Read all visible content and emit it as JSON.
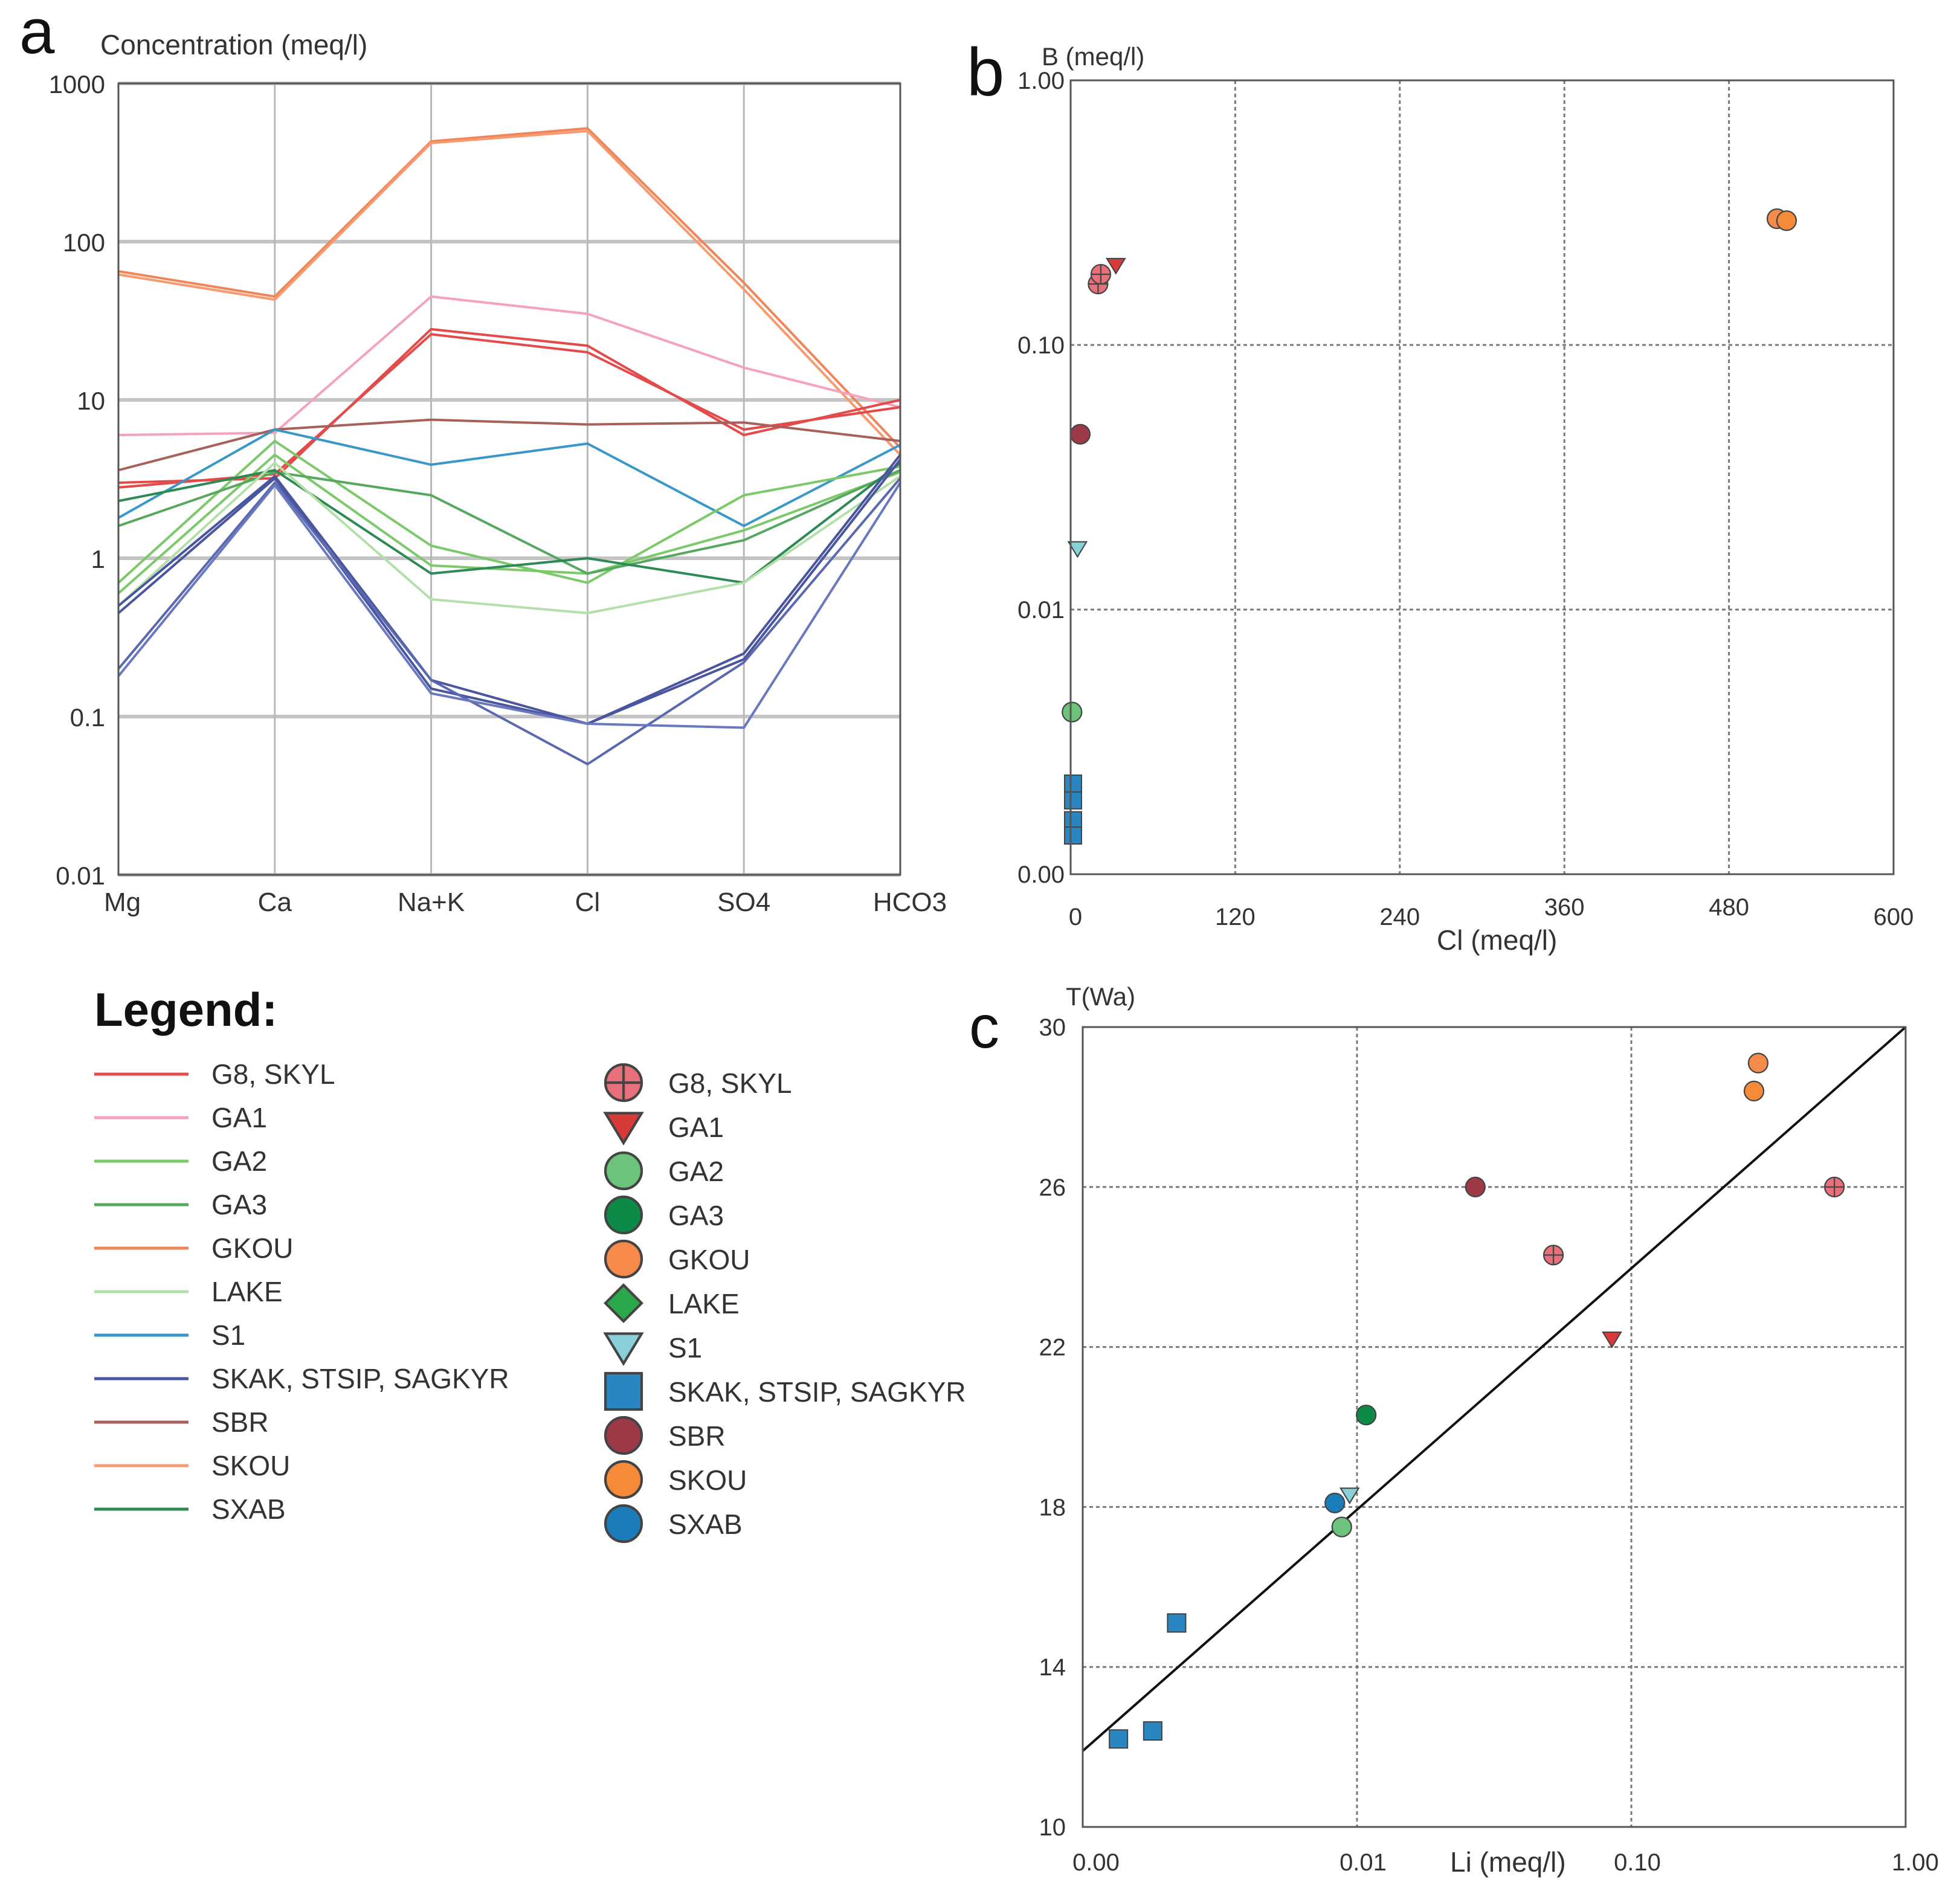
{
  "panel_letters": {
    "a": "a",
    "b": "b",
    "c": "c"
  },
  "legend": {
    "title": "Legend:",
    "line_entries": [
      {
        "label": "G8, SKYL",
        "color": "#e34a4a"
      },
      {
        "label": "GA1",
        "color": "#f4a3b8"
      },
      {
        "label": "GA2",
        "color": "#7cc96a"
      },
      {
        "label": "GA3",
        "color": "#56a85e"
      },
      {
        "label": "GKOU",
        "color": "#f0855a"
      },
      {
        "label": "LAKE",
        "color": "#b3e0a8"
      },
      {
        "label": "S1",
        "color": "#3a98c8"
      },
      {
        "label": "SKAK, STSIP, SAGKYR",
        "color": "#4a55a0"
      },
      {
        "label": "SBR",
        "color": "#a8605a"
      },
      {
        "label": "SKOU",
        "color": "#f79a70"
      },
      {
        "label": "SXAB",
        "color": "#2e8a55"
      }
    ],
    "marker_entries": [
      {
        "label": "G8, SKYL",
        "shape": "circle-cross",
        "color": "#e8707a"
      },
      {
        "label": "GA1",
        "shape": "triangle-down",
        "color": "#d83a3a"
      },
      {
        "label": "GA2",
        "shape": "circle",
        "color": "#6cc47a"
      },
      {
        "label": "GA3",
        "shape": "circle",
        "color": "#0e8a48"
      },
      {
        "label": "GKOU",
        "shape": "circle",
        "color": "#f58a4a"
      },
      {
        "label": "LAKE",
        "shape": "diamond",
        "color": "#2aa84a"
      },
      {
        "label": "S1",
        "shape": "triangle-down",
        "color": "#8ad0d8"
      },
      {
        "label": "SKAK, STSIP, SAGKYR",
        "shape": "square",
        "color": "#2a86c0"
      },
      {
        "label": "SBR",
        "shape": "circle",
        "color": "#9e3a48"
      },
      {
        "label": "SKOU",
        "shape": "circle",
        "color": "#f58a38"
      },
      {
        "label": "SXAB",
        "shape": "circle",
        "color": "#1a7cb8"
      }
    ]
  },
  "chart_data": [
    {
      "id": "a",
      "type": "line",
      "title": "Concentration (meq/l)",
      "yscale": "log",
      "ylim": [
        0.01,
        1000
      ],
      "categories": [
        "Mg",
        "Ca",
        "Na+K",
        "Cl",
        "SO4",
        "HCO3"
      ],
      "yticks": [
        "1000",
        "100",
        "10",
        "1",
        "0.1",
        "0.01"
      ],
      "ytick_values": [
        1000,
        100,
        10,
        1,
        0.1,
        0.01
      ],
      "grid": true,
      "series": [
        {
          "name": "GKOU",
          "color": "#f0855a",
          "values": [
            65,
            45,
            430,
            520,
            55,
            5
          ]
        },
        {
          "name": "SKOU",
          "color": "#f79a70",
          "values": [
            62,
            43,
            420,
            500,
            50,
            4.5
          ]
        },
        {
          "name": "GA1",
          "color": "#f4a3b8",
          "values": [
            6,
            6.2,
            45,
            35,
            16,
            9
          ]
        },
        {
          "name": "G8, SKYL",
          "color": "#e34a4a",
          "values": [
            3,
            3.2,
            28,
            22,
            6,
            10
          ]
        },
        {
          "name": "G8, SKYL",
          "color": "#e34a4a",
          "values": [
            2.8,
            3.4,
            26,
            20,
            6.5,
            9
          ]
        },
        {
          "name": "SBR",
          "color": "#a8605a",
          "values": [
            3.6,
            6.5,
            7.5,
            7,
            7.2,
            5.5
          ]
        },
        {
          "name": "S1",
          "color": "#3a98c8",
          "values": [
            1.8,
            6.5,
            3.9,
            5.3,
            1.6,
            5.2
          ]
        },
        {
          "name": "GA2",
          "color": "#7cc96a",
          "values": [
            0.7,
            5.5,
            1.2,
            0.7,
            2.5,
            3.8
          ]
        },
        {
          "name": "GA2",
          "color": "#7cc96a",
          "values": [
            0.6,
            4.5,
            0.9,
            0.8,
            1.5,
            3.5
          ]
        },
        {
          "name": "GA3",
          "color": "#56a85e",
          "values": [
            1.6,
            3.5,
            2.5,
            0.8,
            1.3,
            3.6
          ]
        },
        {
          "name": "SXAB",
          "color": "#2e8a55",
          "values": [
            2.3,
            3.6,
            0.8,
            1,
            0.7,
            4
          ]
        },
        {
          "name": "LAKE",
          "color": "#b3e0a8",
          "values": [
            0.5,
            4,
            0.55,
            0.45,
            0.7,
            3.3
          ]
        },
        {
          "name": "SKAK, STSIP, SAGKYR",
          "color": "#4a55a0",
          "values": [
            0.5,
            3.3,
            0.17,
            0.09,
            0.25,
            4.5
          ]
        },
        {
          "name": "SKAK, STSIP, SAGKYR",
          "color": "#4a55a0",
          "values": [
            0.45,
            3.2,
            0.15,
            0.09,
            0.23,
            4.2
          ]
        },
        {
          "name": "SKAK, STSIP, SAGKYR",
          "color": "#5a68b0",
          "values": [
            0.2,
            3,
            0.17,
            0.05,
            0.22,
            3.2
          ]
        },
        {
          "name": "SKAK, STSIP, SAGKYR",
          "color": "#6a78c0",
          "values": [
            0.18,
            2.9,
            0.14,
            0.09,
            0.085,
            3
          ]
        }
      ]
    },
    {
      "id": "b",
      "type": "scatter",
      "xlabel": "Cl (meq/l)",
      "ylabel": "B (meq/l)",
      "xlim": [
        0,
        600
      ],
      "xticks": [
        "0",
        "120",
        "240",
        "360",
        "480",
        "600"
      ],
      "xtick_values": [
        0,
        120,
        240,
        360,
        480,
        600
      ],
      "yticks": [
        "1.00",
        "0.10",
        "0.01",
        "0.00"
      ],
      "grid": true,
      "points": [
        {
          "group": "GKOU",
          "shape": "circle",
          "color": "#f58a4a",
          "x": 515,
          "y": 0.3
        },
        {
          "group": "SKOU",
          "shape": "circle",
          "color": "#f58a38",
          "x": 522,
          "y": 0.295
        },
        {
          "group": "G8, SKYL",
          "shape": "circle-cross",
          "color": "#e8707a",
          "x": 20,
          "y": 0.17
        },
        {
          "group": "G8, SKYL",
          "shape": "circle-cross",
          "color": "#e8707a",
          "x": 22,
          "y": 0.185
        },
        {
          "group": "GA1",
          "shape": "triangle-down",
          "color": "#d83a3a",
          "x": 33,
          "y": 0.2
        },
        {
          "group": "SBR",
          "shape": "circle",
          "color": "#9e3a48",
          "x": 7,
          "y": 0.046
        },
        {
          "group": "S1",
          "shape": "triangle-down",
          "color": "#8ad0d8",
          "x": 5,
          "y": 0.017
        },
        {
          "group": "GA2",
          "shape": "circle",
          "color": "#6cc47a",
          "x": 1,
          "y": 0.0041
        },
        {
          "group": "SKAK, STSIP, SAGKYR",
          "shape": "square",
          "color": "#2a86c0",
          "x": 0,
          "y": 0.0022
        },
        {
          "group": "SKAK, STSIP, SAGKYR",
          "shape": "square",
          "color": "#2a86c0",
          "x": 0,
          "y": 0.0019
        },
        {
          "group": "SKAK, STSIP, SAGKYR",
          "shape": "square",
          "color": "#2a86c0",
          "x": 0,
          "y": 0.0016
        },
        {
          "group": "SKAK, STSIP, SAGKYR",
          "shape": "square",
          "color": "#2a86c0",
          "x": 0,
          "y": 0.0014
        }
      ]
    },
    {
      "id": "c",
      "type": "scatter",
      "xlabel": "Li (meq/l)",
      "ylabel": "T(Wa)",
      "xscale": "log",
      "xlim": [
        0.001,
        1
      ],
      "xticks": [
        "0.00",
        "0.01",
        "0.10",
        "1.00"
      ],
      "ylim": [
        10,
        30
      ],
      "yticks": [
        "30",
        "26",
        "22",
        "18",
        "14",
        "10"
      ],
      "ytick_values": [
        30,
        26,
        22,
        18,
        14,
        10
      ],
      "grid": true,
      "fit_line": {
        "points": [
          [
            0.001,
            11.9
          ],
          [
            1,
            30
          ]
        ]
      },
      "points": [
        {
          "group": "SKAK, STSIP, SAGKYR",
          "shape": "square",
          "color": "#2a86c0",
          "x": 0.00135,
          "y": 12.2
        },
        {
          "group": "SKAK, STSIP, SAGKYR",
          "shape": "square",
          "color": "#2a86c0",
          "x": 0.0018,
          "y": 12.4
        },
        {
          "group": "SKAK, STSIP, SAGKYR",
          "shape": "square",
          "color": "#2a86c0",
          "x": 0.0022,
          "y": 15.1
        },
        {
          "group": "GA2",
          "shape": "circle",
          "color": "#6cc47a",
          "x": 0.0088,
          "y": 17.5
        },
        {
          "group": "SXAB",
          "shape": "circle",
          "color": "#1a7cb8",
          "x": 0.0083,
          "y": 18.1
        },
        {
          "group": "S1",
          "shape": "triangle-down",
          "color": "#8ad0d8",
          "x": 0.0094,
          "y": 18.3
        },
        {
          "group": "GA3",
          "shape": "circle",
          "color": "#0e8a48",
          "x": 0.0108,
          "y": 20.3
        },
        {
          "group": "SBR",
          "shape": "circle",
          "color": "#9e3a48",
          "x": 0.027,
          "y": 26
        },
        {
          "group": "G8, SKYL",
          "shape": "circle-cross",
          "color": "#e8707a",
          "x": 0.052,
          "y": 24.3
        },
        {
          "group": "GA1",
          "shape": "triangle-down",
          "color": "#d83a3a",
          "x": 0.085,
          "y": 22.2
        },
        {
          "group": "SKOU",
          "shape": "circle",
          "color": "#f58a38",
          "x": 0.28,
          "y": 28.4
        },
        {
          "group": "GKOU",
          "shape": "circle",
          "color": "#f58a4a",
          "x": 0.29,
          "y": 29.1
        },
        {
          "group": "G8, SKYL",
          "shape": "circle-cross",
          "color": "#e8707a",
          "x": 0.55,
          "y": 26
        }
      ]
    }
  ]
}
